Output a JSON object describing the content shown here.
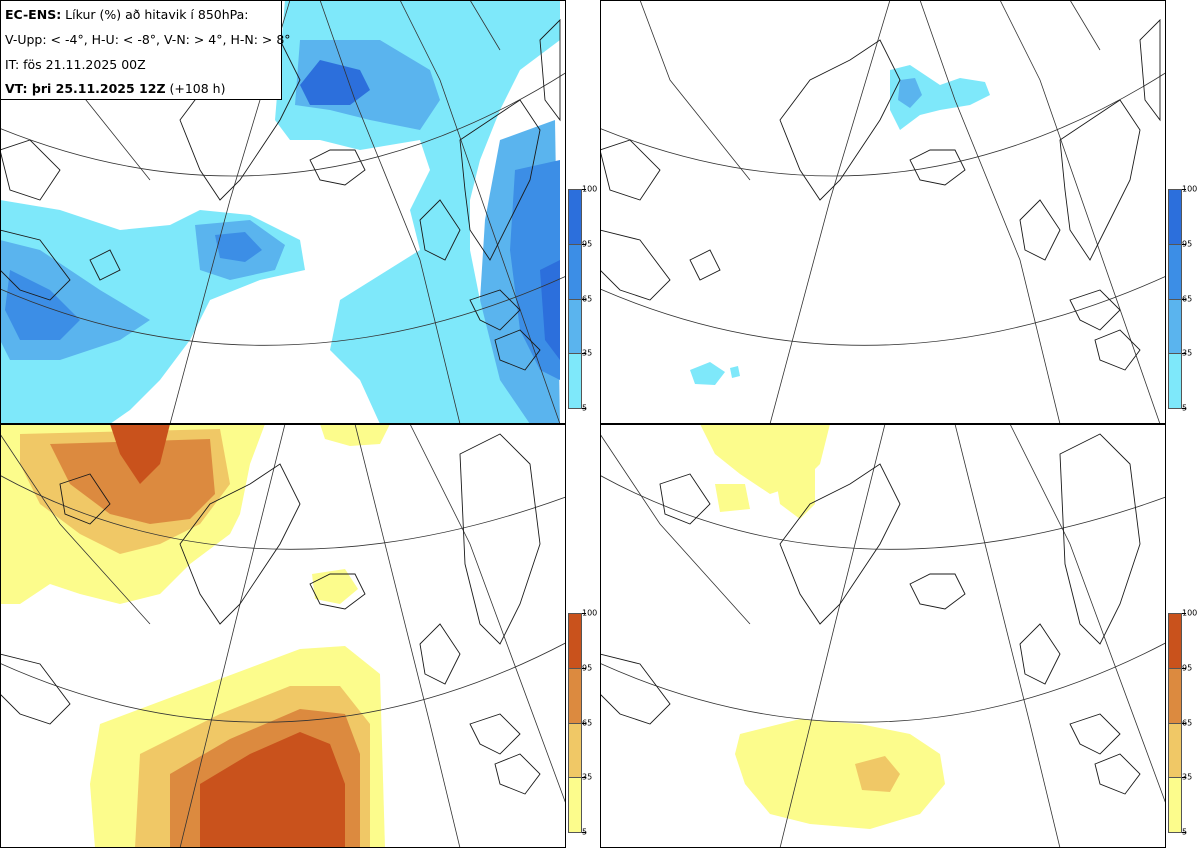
{
  "header": {
    "model_label": "EC-ENS:",
    "title_rest": " Líkur (%) að hitavik í 850hPa:",
    "thresholds": "V-Upp: < -4°, H-U: < -8°, V-N: > 4°, H-N: > 8°",
    "init_time": "IT: fös 21.11.2025 00Z",
    "valid_label": "VT: þri 25.11.2025 12Z",
    "valid_offset": " (+108 h)"
  },
  "colorbars": {
    "levels": [
      "100",
      "95",
      "65",
      "35",
      "5"
    ],
    "cold_colors": [
      "#2c6fdc",
      "#3c8ee6",
      "#5ab4ee",
      "#7ee8fa"
    ],
    "warm_colors": [
      "#c9521c",
      "#dc8a3f",
      "#f0c866",
      "#fcfc8c"
    ]
  },
  "panels": [
    {
      "id": "V-Upp",
      "palette": "cold"
    },
    {
      "id": "H-U",
      "palette": "cold"
    },
    {
      "id": "V-N",
      "palette": "warm"
    },
    {
      "id": "H-N",
      "palette": "warm"
    }
  ],
  "map": {
    "region": "North Atlantic – Greenland – Iceland – Scandinavia – Canada",
    "land_outline": "#1a1a1a",
    "graticule": "#333333"
  }
}
